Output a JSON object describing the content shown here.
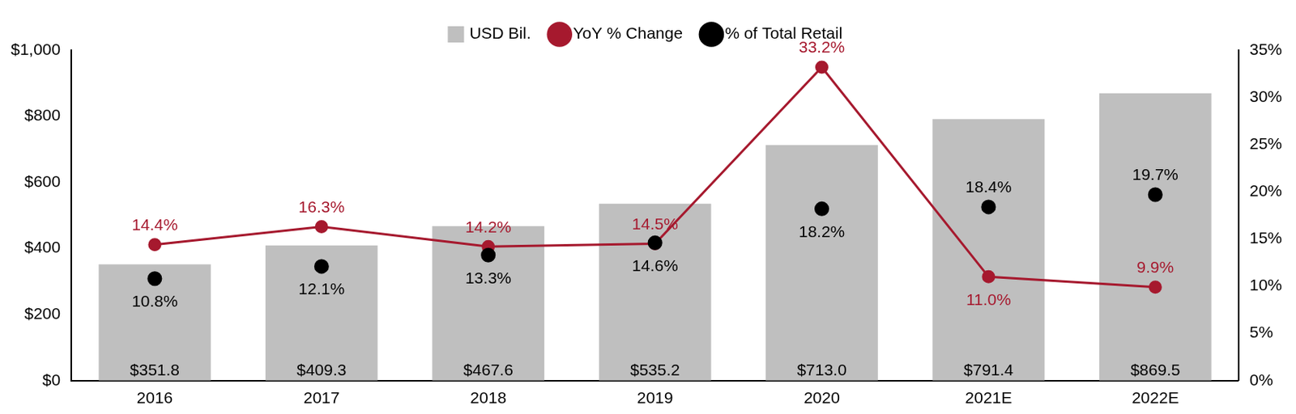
{
  "chart_data": {
    "type": "bar",
    "categories": [
      "2016",
      "2017",
      "2018",
      "2019",
      "2020",
      "2021E",
      "2022E"
    ],
    "series": [
      {
        "name": "USD Bil.",
        "type": "bar",
        "color": "#bfbfbf",
        "values": [
          351.8,
          409.3,
          467.6,
          535.2,
          713.0,
          791.4,
          869.5
        ],
        "value_labels": [
          "$351.8",
          "$409.3",
          "$467.6",
          "$535.2",
          "$713.0",
          "$791.4",
          "$869.5"
        ]
      },
      {
        "name": "YoY % Change",
        "type": "line",
        "axis": "y2",
        "color": "#a6192e",
        "marker": "circle",
        "line_style": "solid",
        "values": [
          14.4,
          16.3,
          14.2,
          14.5,
          33.2,
          11.0,
          9.9
        ],
        "value_labels": [
          "14.4%",
          "16.3%",
          "14.2%",
          "14.5%",
          "33.2%",
          "11.0%",
          "9.9%"
        ]
      },
      {
        "name": "% of Total Retail",
        "type": "line",
        "axis": "y2",
        "color": "#000000",
        "marker": "circle",
        "line_style": "none",
        "values": [
          10.8,
          12.1,
          13.3,
          14.6,
          18.2,
          18.4,
          19.7
        ],
        "value_labels": [
          "10.8%",
          "12.1%",
          "13.3%",
          "14.6%",
          "18.2%",
          "18.4%",
          "19.7%"
        ]
      }
    ],
    "ylim": [
      0,
      1000
    ],
    "yticks": [
      {
        "value": 0,
        "label": "$0"
      },
      {
        "value": 200,
        "label": "$200"
      },
      {
        "value": 400,
        "label": "$400"
      },
      {
        "value": 600,
        "label": "$600"
      },
      {
        "value": 800,
        "label": "$800"
      },
      {
        "value": 1000,
        "label": "$1,000"
      }
    ],
    "y2lim": [
      0,
      35
    ],
    "y2ticks": [
      {
        "value": 0,
        "label": "0%"
      },
      {
        "value": 5,
        "label": "5%"
      },
      {
        "value": 10,
        "label": "10%"
      },
      {
        "value": 15,
        "label": "15%"
      },
      {
        "value": 20,
        "label": "20%"
      },
      {
        "value": 25,
        "label": "25%"
      },
      {
        "value": 30,
        "label": "30%"
      },
      {
        "value": 35,
        "label": "35%"
      }
    ],
    "grid": false,
    "legend": "top",
    "data_labels": true
  }
}
